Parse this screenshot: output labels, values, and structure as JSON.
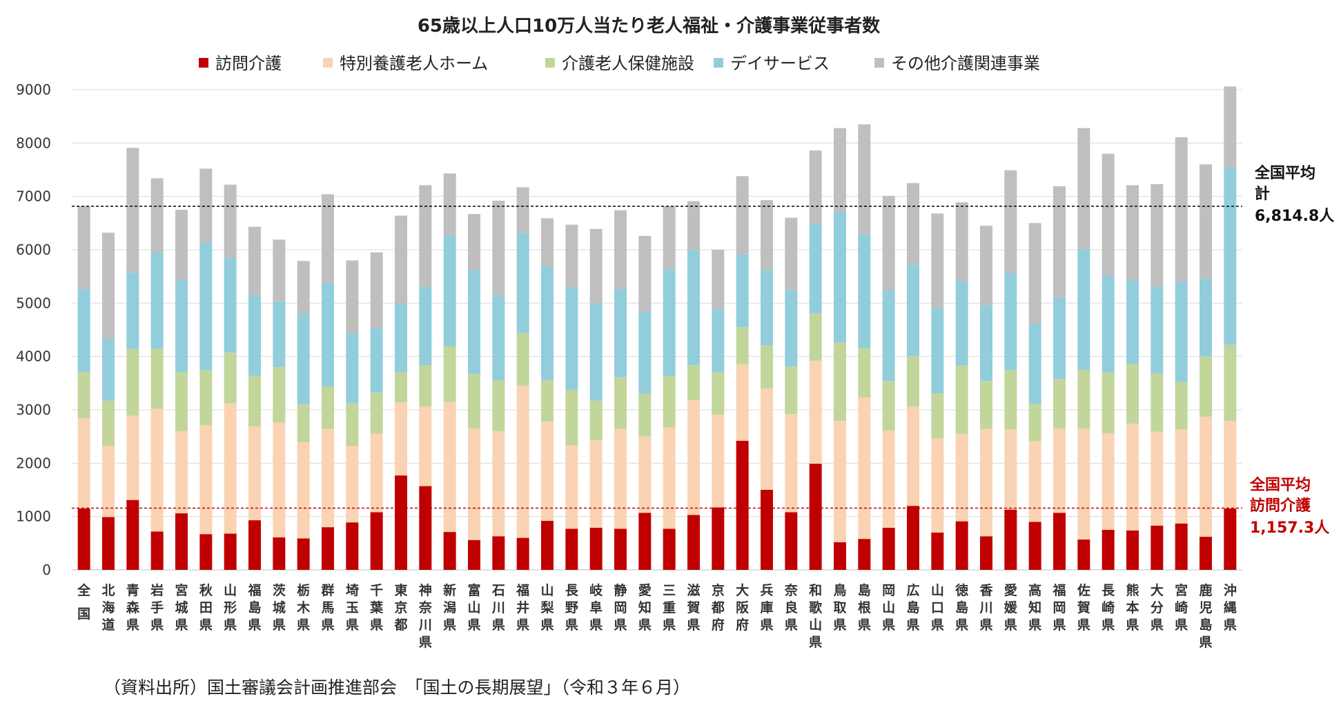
{
  "chart_data": {
    "type": "bar",
    "stacked": true,
    "title": "65歳以上人口10万人当たり老人福祉・介護事業従事者数",
    "xlabel": "",
    "ylabel": "",
    "ylim": [
      0,
      9000
    ],
    "yticks": [
      0,
      1000,
      2000,
      3000,
      4000,
      5000,
      6000,
      7000,
      8000,
      9000
    ],
    "grid": "horizontal",
    "legend_position": "top",
    "categories": [
      "全国",
      "北海道",
      "青森県",
      "岩手県",
      "宮城県",
      "秋田県",
      "山形県",
      "福島県",
      "茨城県",
      "栃木県",
      "群馬県",
      "埼玉県",
      "千葉県",
      "東京都",
      "神奈川県",
      "新潟県",
      "富山県",
      "石川県",
      "福井県",
      "山梨県",
      "長野県",
      "岐阜県",
      "静岡県",
      "愛知県",
      "三重県",
      "滋賀県",
      "京都府",
      "大阪府",
      "兵庫県",
      "奈良県",
      "和歌山県",
      "鳥取県",
      "島根県",
      "岡山県",
      "広島県",
      "山口県",
      "徳島県",
      "香川県",
      "愛媛県",
      "高知県",
      "福岡県",
      "佐賀県",
      "長崎県",
      "熊本県",
      "大分県",
      "宮崎県",
      "鹿児島県",
      "沖縄県"
    ],
    "series": [
      {
        "name": "訪問介護",
        "color": "#c00000",
        "values": [
          1150,
          990,
          1310,
          720,
          1060,
          670,
          680,
          930,
          610,
          590,
          800,
          890,
          1080,
          1770,
          1570,
          710,
          560,
          630,
          600,
          920,
          770,
          790,
          770,
          1070,
          770,
          1030,
          1170,
          2420,
          1500,
          1080,
          1990,
          520,
          580,
          790,
          1200,
          700,
          910,
          630,
          1130,
          900,
          1070,
          570,
          750,
          740,
          830,
          870,
          620,
          1150
        ]
      },
      {
        "name": "特別養護老人ホーム",
        "color": "#fad3b4",
        "values": [
          1690,
          1330,
          1580,
          2300,
          1540,
          2040,
          2440,
          1760,
          2150,
          1800,
          1840,
          1430,
          1470,
          1370,
          1490,
          2440,
          2090,
          1970,
          2850,
          1860,
          1560,
          1640,
          1870,
          1430,
          1900,
          2150,
          1740,
          1430,
          1900,
          1840,
          1930,
          2270,
          2650,
          1820,
          1860,
          1760,
          1640,
          2010,
          1500,
          1510,
          1580,
          2080,
          1810,
          2000,
          1760,
          1760,
          2250,
          1640
        ]
      },
      {
        "name": "介護老人保健施設",
        "color": "#c2d69b",
        "values": [
          870,
          850,
          1250,
          1120,
          1110,
          1030,
          950,
          950,
          1040,
          710,
          800,
          800,
          770,
          560,
          780,
          1040,
          1020,
          950,
          990,
          780,
          1040,
          740,
          970,
          800,
          960,
          660,
          790,
          700,
          810,
          890,
          890,
          1470,
          920,
          930,
          950,
          850,
          1280,
          900,
          1110,
          700,
          930,
          1100,
          1140,
          1120,
          1090,
          890,
          1130,
          1430
        ]
      },
      {
        "name": "デイサービス",
        "color": "#92cddc",
        "values": [
          1550,
          1160,
          1430,
          1810,
          1720,
          2390,
          1780,
          1510,
          1240,
          1710,
          1940,
          1310,
          1210,
          1300,
          1460,
          2090,
          1950,
          1600,
          1880,
          2120,
          1930,
          1830,
          1650,
          1540,
          2000,
          2150,
          1180,
          1360,
          1410,
          1430,
          1670,
          2460,
          2130,
          1690,
          1710,
          1600,
          1580,
          1420,
          1820,
          1500,
          1530,
          2260,
          1810,
          1570,
          1630,
          1880,
          1460,
          3330
        ]
      },
      {
        "name": "その他介護関連事業",
        "color": "#bfbfbf",
        "values": [
          1560,
          1990,
          2340,
          1390,
          1320,
          1390,
          1370,
          1280,
          1150,
          980,
          1660,
          1370,
          1420,
          1640,
          1910,
          1150,
          1050,
          1770,
          850,
          910,
          1170,
          1390,
          1480,
          1420,
          1190,
          920,
          1120,
          1470,
          1310,
          1360,
          1380,
          1560,
          2070,
          1780,
          1530,
          1770,
          1480,
          1490,
          1930,
          1890,
          2080,
          2270,
          2290,
          1780,
          1920,
          2710,
          2140,
          1510
        ]
      }
    ],
    "reference_lines": [
      {
        "value": 6814.8,
        "color": "#000000",
        "label_lines": [
          "全国平均",
          "計",
          "6,814.8人"
        ]
      },
      {
        "value": 1157.3,
        "color": "#c00000",
        "label_lines": [
          "全国平均",
          "訪問介護",
          "1,157.3人"
        ]
      }
    ]
  },
  "source_note": "（資料出所）国土審議会計画推進部会　「国土の長期展望」（令和３年６月）"
}
